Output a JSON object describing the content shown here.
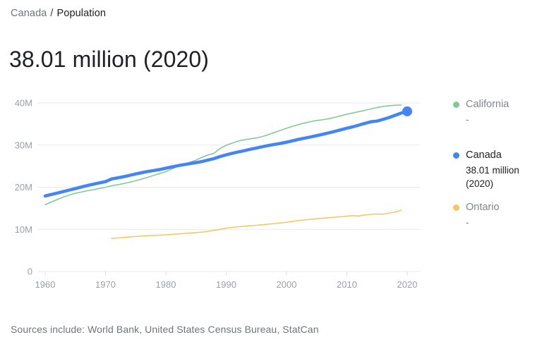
{
  "breadcrumb": {
    "parent": "Canada",
    "separator": "/",
    "current": "Population"
  },
  "headline": {
    "value": "38.01 million (2020)"
  },
  "legend": {
    "items": [
      {
        "name": "California",
        "value": "-",
        "dot_color": "#81c995",
        "muted": true
      },
      {
        "name": "Canada",
        "value": "38.01 million (2020)",
        "dot_color": "#4285f4",
        "muted": false
      },
      {
        "name": "Ontario",
        "value": "-",
        "dot_color": "#fbc55c",
        "muted": true
      }
    ]
  },
  "chart_data": {
    "type": "line",
    "title": "Population",
    "xlabel": "",
    "ylabel": "",
    "unit": "millions of people",
    "grid": true,
    "legend_position": "right",
    "x_axis": {
      "ticks": [
        1960,
        1970,
        1980,
        1990,
        2000,
        2010,
        2020
      ],
      "range": [
        1958,
        2023
      ]
    },
    "y_axis": {
      "range": [
        0,
        40
      ],
      "ticks": [
        {
          "value": 0,
          "label": "0"
        },
        {
          "value": 10,
          "label": "10M"
        },
        {
          "value": 20,
          "label": "20M"
        },
        {
          "value": 30,
          "label": "30M"
        },
        {
          "value": 40,
          "label": "40M"
        }
      ]
    },
    "series": [
      {
        "name": "California",
        "color": "#7cc88f",
        "line_width": 1.5,
        "end_dot": false,
        "x": [
          1960,
          1961,
          1962,
          1963,
          1964,
          1965,
          1966,
          1967,
          1968,
          1969,
          1970,
          1971,
          1972,
          1973,
          1974,
          1975,
          1976,
          1977,
          1978,
          1979,
          1980,
          1981,
          1982,
          1983,
          1984,
          1985,
          1986,
          1987,
          1988,
          1989,
          1990,
          1991,
          1992,
          1993,
          1994,
          1995,
          1996,
          1997,
          1998,
          1999,
          2000,
          2001,
          2002,
          2003,
          2004,
          2005,
          2006,
          2007,
          2008,
          2009,
          2010,
          2011,
          2012,
          2013,
          2014,
          2015,
          2016,
          2017,
          2018,
          2019
        ],
        "y": [
          15.87,
          16.5,
          17.07,
          17.67,
          18.15,
          18.58,
          18.86,
          19.18,
          19.39,
          19.71,
          19.97,
          20.35,
          20.59,
          20.87,
          21.17,
          21.54,
          21.94,
          22.35,
          22.84,
          23.26,
          23.67,
          24.35,
          24.95,
          25.45,
          25.92,
          26.44,
          27.1,
          27.66,
          28.06,
          29.22,
          29.96,
          30.47,
          30.97,
          31.27,
          31.48,
          31.7,
          32.02,
          32.49,
          32.99,
          33.5,
          33.99,
          34.48,
          34.87,
          35.25,
          35.57,
          35.83,
          36.02,
          36.25,
          36.6,
          36.96,
          37.32,
          37.64,
          37.95,
          38.25,
          38.59,
          38.92,
          39.17,
          39.36,
          39.46,
          39.51
        ]
      },
      {
        "name": "Ontario",
        "color": "#f8c45a",
        "line_width": 1.5,
        "end_dot": false,
        "x": [
          1971,
          1972,
          1973,
          1974,
          1975,
          1976,
          1977,
          1978,
          1979,
          1980,
          1981,
          1982,
          1983,
          1984,
          1985,
          1986,
          1987,
          1988,
          1989,
          1990,
          1991,
          1992,
          1993,
          1994,
          1995,
          1996,
          1997,
          1998,
          1999,
          2000,
          2001,
          2002,
          2003,
          2004,
          2005,
          2006,
          2007,
          2008,
          2009,
          2010,
          2011,
          2012,
          2013,
          2014,
          2015,
          2016,
          2017,
          2018,
          2019
        ],
        "y": [
          7.85,
          7.96,
          8.09,
          8.21,
          8.31,
          8.41,
          8.5,
          8.56,
          8.62,
          8.71,
          8.81,
          8.91,
          9.02,
          9.12,
          9.23,
          9.36,
          9.54,
          9.75,
          10.02,
          10.3,
          10.47,
          10.61,
          10.75,
          10.86,
          10.96,
          11.08,
          11.23,
          11.37,
          11.52,
          11.68,
          11.9,
          12.09,
          12.24,
          12.39,
          12.53,
          12.66,
          12.76,
          12.88,
          13.0,
          13.14,
          13.26,
          13.18,
          13.41,
          13.55,
          13.66,
          13.58,
          13.88,
          14.07,
          14.57
        ]
      },
      {
        "name": "Canada",
        "color": "#4285f4",
        "line_width": 4.5,
        "end_dot": true,
        "end_dot_radius": 7,
        "x": [
          1960,
          1961,
          1962,
          1963,
          1964,
          1965,
          1966,
          1967,
          1968,
          1969,
          1970,
          1971,
          1972,
          1973,
          1974,
          1975,
          1976,
          1977,
          1978,
          1979,
          1980,
          1981,
          1982,
          1983,
          1984,
          1985,
          1986,
          1987,
          1988,
          1989,
          1990,
          1991,
          1992,
          1993,
          1994,
          1995,
          1996,
          1997,
          1998,
          1999,
          2000,
          2001,
          2002,
          2003,
          2004,
          2005,
          2006,
          2007,
          2008,
          2009,
          2010,
          2011,
          2012,
          2013,
          2014,
          2015,
          2016,
          2017,
          2018,
          2019,
          2020
        ],
        "y": [
          17.91,
          18.27,
          18.61,
          18.96,
          19.33,
          19.68,
          20.05,
          20.41,
          20.73,
          21.03,
          21.32,
          21.96,
          22.22,
          22.49,
          22.81,
          23.14,
          23.45,
          23.73,
          23.96,
          24.2,
          24.52,
          24.82,
          25.12,
          25.37,
          25.61,
          25.84,
          26.1,
          26.45,
          26.79,
          27.28,
          27.69,
          28.04,
          28.37,
          28.68,
          29.0,
          29.3,
          29.61,
          29.91,
          30.16,
          30.4,
          30.69,
          31.02,
          31.36,
          31.64,
          31.94,
          32.24,
          32.57,
          32.89,
          33.25,
          33.63,
          34.0,
          34.34,
          34.75,
          35.15,
          35.54,
          35.7,
          36.11,
          36.55,
          37.07,
          37.6,
          38.01
        ]
      }
    ]
  },
  "footer": {
    "sources": "Sources include: World Bank, United States Census Bureau, StatCan"
  }
}
